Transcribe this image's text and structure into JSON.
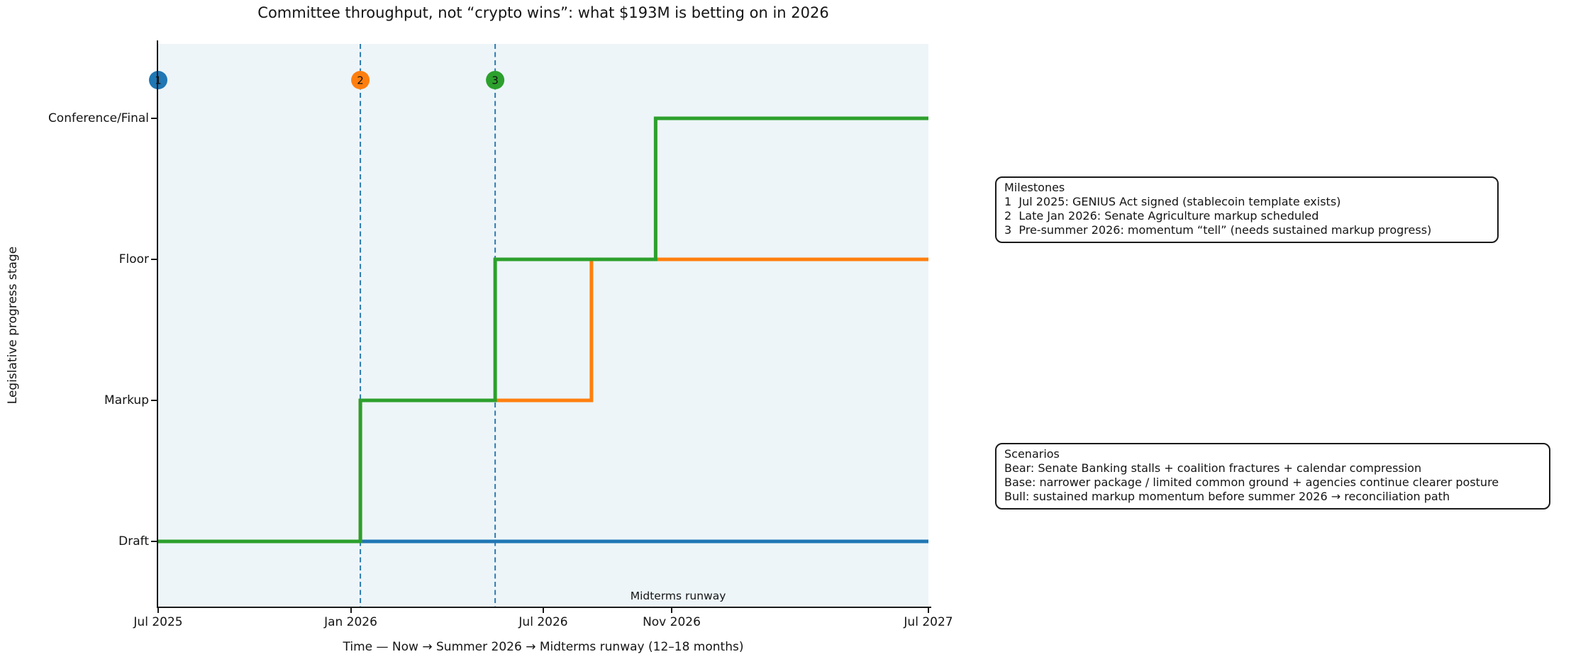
{
  "title": "Committee throughput, not “crypto wins”: what $193M is betting on in 2026",
  "x_axis": {
    "label": "Time — Now → Summer 2026 → Midterms runway (12–18 months)",
    "ticks": [
      {
        "label": "Jul 2025",
        "month": 0
      },
      {
        "label": "Jan 2026",
        "month": 6
      },
      {
        "label": "Jul 2026",
        "month": 12
      },
      {
        "label": "Nov 2026",
        "month": 16
      },
      {
        "label": "Jul 2027",
        "month": 24
      }
    ]
  },
  "y_axis": {
    "label": "Legislative progress stage",
    "categories": [
      "Draft",
      "Markup",
      "Floor",
      "Conference/Final"
    ]
  },
  "milestones_box": {
    "title": "Milestones",
    "items": [
      "1  Jul 2025: GENIUS Act signed (stablecoin template exists)",
      "2  Late Jan 2026: Senate Agriculture markup scheduled",
      "3  Pre-summer 2026: momentum “tell” (needs sustained markup progress)"
    ]
  },
  "scenarios_box": {
    "title": "Scenarios",
    "items": [
      "Bear: Senate Banking stalls + coalition fractures + calendar compression",
      "Base: narrower package / limited common ground + agencies continue clearer posture",
      "Bull: sustained markup momentum before summer 2026 → reconciliation path"
    ]
  },
  "colors": {
    "bear": "#1f77b4",
    "base": "#ff7f0e",
    "bull": "#2ca02c",
    "vline": "#2e7bb0",
    "plot_bg": "#edf5f9",
    "axis": "#1a1a1a"
  },
  "chart_data": {
    "type": "line",
    "subtype": "step",
    "title": "Committee throughput, not “crypto wins”: what $193M is betting on in 2026",
    "xlabel": "Time — Now → Summer 2026 → Midterms runway (12–18 months)",
    "ylabel": "Legislative progress stage",
    "x_unit": "months since Jul 2025",
    "x_range": [
      0,
      24
    ],
    "x_tick_labels": [
      "Jul 2025",
      "Jan 2026",
      "Jul 2026",
      "Nov 2026",
      "Jul 2027"
    ],
    "stages": [
      "Draft",
      "Markup",
      "Floor",
      "Conference/Final"
    ],
    "grid": false,
    "legend": "none (scenario/milestone text boxes at right)",
    "series": [
      {
        "name": "Bear",
        "color": "#1f77b4",
        "steps": [
          [
            0,
            0
          ],
          [
            24,
            0
          ]
        ],
        "reading": "Stays at Draft from Jul 2025 through Jul 2027"
      },
      {
        "name": "Base",
        "color": "#ff7f0e",
        "steps": [
          [
            0,
            0
          ],
          [
            6.3,
            0
          ],
          [
            6.3,
            1
          ],
          [
            13.5,
            1
          ],
          [
            13.5,
            2
          ],
          [
            24,
            2
          ]
        ],
        "reading": "Draft until late Jan 2026, Markup until mid-Aug 2026, then Floor through Jul 2027"
      },
      {
        "name": "Bull",
        "color": "#2ca02c",
        "steps": [
          [
            0,
            0
          ],
          [
            6.3,
            0
          ],
          [
            6.3,
            1
          ],
          [
            10.5,
            1
          ],
          [
            10.5,
            2
          ],
          [
            15.5,
            2
          ],
          [
            15.5,
            3
          ],
          [
            24,
            3
          ]
        ],
        "reading": "Draft until late Jan 2026, Markup until mid-May 2026, Floor until mid-Oct 2026, then Conference/Final"
      }
    ],
    "vlines": [
      {
        "month": 6.3,
        "style": "dashed"
      },
      {
        "month": 10.5,
        "style": "dashed"
      }
    ],
    "milestone_markers": [
      {
        "label": "1",
        "month": 0,
        "color": "#1f77b4"
      },
      {
        "label": "2",
        "month": 6.3,
        "color": "#ff7f0e"
      },
      {
        "label": "3",
        "month": 10.5,
        "color": "#2ca02c"
      }
    ],
    "annotation": {
      "text": "Midterms runway",
      "month": 16.2
    }
  }
}
